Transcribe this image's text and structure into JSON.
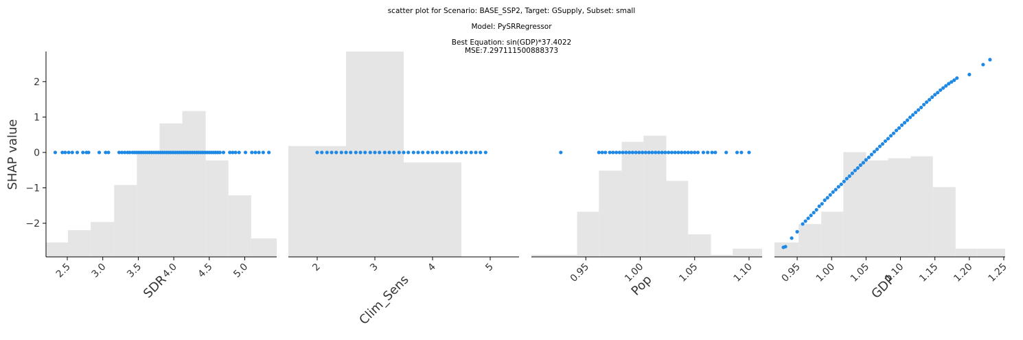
{
  "figure": {
    "title_lines": [
      "scatter plot for Scenario: BASE_SSP2, Target: GSupply, Subset: small",
      "Model: PySRRegressor",
      "Best Equation: sin(GDP)*37.4022",
      "MSE:7.297111500888373"
    ],
    "ylabel": "SHAP value"
  },
  "chart_data": [
    {
      "type": "scatter",
      "xlabel": "SDR",
      "xlim": [
        2.2,
        5.45
      ],
      "xticks": [
        2.5,
        3.0,
        3.5,
        4.0,
        4.5,
        5.0
      ],
      "xtick_labels": [
        "2.5",
        "3.0",
        "3.5",
        "4.0",
        "4.5",
        "5.0"
      ],
      "ylim": [
        -2.95,
        2.85
      ],
      "yticks": [
        -2,
        -1,
        0,
        1,
        2
      ],
      "ytick_labels": [
        "−2",
        "−1",
        "0",
        "1",
        "2"
      ],
      "point_color": "#1e88e5",
      "histogram_color": "#e5e5e5",
      "x": [
        2.33,
        2.43,
        2.47,
        2.52,
        2.57,
        2.64,
        2.72,
        2.77,
        2.8,
        2.95,
        3.04,
        3.08,
        3.23,
        3.27,
        3.31,
        3.35,
        3.38,
        3.42,
        3.45,
        3.48,
        3.51,
        3.54,
        3.57,
        3.6,
        3.63,
        3.66,
        3.69,
        3.72,
        3.75,
        3.78,
        3.81,
        3.84,
        3.87,
        3.9,
        3.93,
        3.96,
        3.99,
        4.02,
        4.05,
        4.08,
        4.11,
        4.14,
        4.17,
        4.2,
        4.23,
        4.26,
        4.29,
        4.32,
        4.35,
        4.38,
        4.41,
        4.44,
        4.47,
        4.5,
        4.53,
        4.56,
        4.59,
        4.62,
        4.65,
        4.7,
        4.79,
        4.83,
        4.87,
        4.92,
        5.01,
        5.1,
        5.15,
        5.2,
        5.26,
        5.34
      ],
      "y": [
        0,
        0,
        0,
        0,
        0,
        0,
        0,
        0,
        0,
        0,
        0,
        0,
        0,
        0,
        0,
        0,
        0,
        0,
        0,
        0,
        0,
        0,
        0,
        0,
        0,
        0,
        0,
        0,
        0,
        0,
        0,
        0,
        0,
        0,
        0,
        0,
        0,
        0,
        0,
        0,
        0,
        0,
        0,
        0,
        0,
        0,
        0,
        0,
        0,
        0,
        0,
        0,
        0,
        0,
        0,
        0,
        0,
        0,
        0,
        0,
        0,
        0,
        0,
        0,
        0,
        0,
        0,
        0,
        0,
        0
      ],
      "histogram": {
        "edges": [
          2.2,
          2.51,
          2.83,
          3.16,
          3.48,
          3.8,
          4.12,
          4.45,
          4.77,
          5.09,
          5.45
        ],
        "relative_heights": [
          0.07,
          0.13,
          0.17,
          0.35,
          0.5,
          0.65,
          0.71,
          0.47,
          0.3,
          0.09
        ]
      }
    },
    {
      "type": "scatter",
      "xlabel": "Clim_Sens",
      "xlim": [
        1.5,
        5.5
      ],
      "xticks": [
        2,
        3,
        4,
        5
      ],
      "xtick_labels": [
        "2",
        "3",
        "4",
        "5"
      ],
      "ylim": [
        -2.95,
        2.85
      ],
      "yticks": [
        -2,
        -1,
        0,
        1,
        2
      ],
      "ytick_labels": [
        "−2",
        "−1",
        "0",
        "1",
        "2"
      ],
      "point_color": "#1e88e5",
      "histogram_color": "#e5e5e5",
      "x": [
        2.0,
        2.08,
        2.17,
        2.25,
        2.33,
        2.42,
        2.5,
        2.58,
        2.67,
        2.75,
        2.83,
        2.92,
        3.0,
        3.08,
        3.17,
        3.25,
        3.33,
        3.42,
        3.5,
        3.58,
        3.67,
        3.75,
        3.83,
        3.92,
        4.0,
        4.08,
        4.17,
        4.25,
        4.33,
        4.42,
        4.5,
        4.58,
        4.67,
        4.75,
        4.83,
        4.92
      ],
      "y": [
        0,
        0,
        0,
        0,
        0,
        0,
        0,
        0,
        0,
        0,
        0,
        0,
        0,
        0,
        0,
        0,
        0,
        0,
        0,
        0,
        0,
        0,
        0,
        0,
        0,
        0,
        0,
        0,
        0,
        0,
        0,
        0,
        0,
        0,
        0,
        0
      ],
      "histogram": {
        "edges": [
          1.5,
          2.5,
          3.5,
          4.5,
          5.5
        ],
        "relative_heights": [
          0.54,
          1.0,
          0.46,
          0.0
        ]
      }
    },
    {
      "type": "scatter",
      "xlabel": "Pop",
      "xlim": [
        0.9,
        1.112
      ],
      "xticks": [
        0.95,
        1.0,
        1.05,
        1.1
      ],
      "xtick_labels": [
        "0.95",
        "1.00",
        "1.05",
        "1.10"
      ],
      "ylim": [
        -2.95,
        2.85
      ],
      "yticks": [
        -2,
        -1,
        0,
        1,
        2
      ],
      "ytick_labels": [
        "−2",
        "−1",
        "0",
        "1",
        "2"
      ],
      "point_color": "#1e88e5",
      "histogram_color": "#e5e5e5",
      "x": [
        0.927,
        0.962,
        0.965,
        0.968,
        0.972,
        0.975,
        0.978,
        0.981,
        0.984,
        0.987,
        0.99,
        0.993,
        0.996,
        0.999,
        1.002,
        1.005,
        1.008,
        1.011,
        1.014,
        1.017,
        1.02,
        1.023,
        1.026,
        1.029,
        1.032,
        1.035,
        1.038,
        1.041,
        1.044,
        1.047,
        1.05,
        1.053,
        1.058,
        1.062,
        1.066,
        1.069,
        1.079,
        1.089,
        1.093,
        1.1
      ],
      "y": [
        0,
        0,
        0,
        0,
        0,
        0,
        0,
        0,
        0,
        0,
        0,
        0,
        0,
        0,
        0,
        0,
        0,
        0,
        0,
        0,
        0,
        0,
        0,
        0,
        0,
        0,
        0,
        0,
        0,
        0,
        0,
        0,
        0,
        0,
        0,
        0,
        0,
        0,
        0,
        0
      ],
      "histogram": {
        "edges": [
          0.9,
          0.942,
          0.962,
          0.983,
          1.003,
          1.024,
          1.044,
          1.065,
          1.085,
          1.112
        ],
        "relative_heights": [
          0.01,
          0.22,
          0.42,
          0.56,
          0.59,
          0.37,
          0.11,
          0.01,
          0.04
        ]
      }
    },
    {
      "type": "scatter",
      "xlabel": "GDP",
      "xlim": [
        0.917,
        1.252
      ],
      "xticks": [
        0.95,
        1.0,
        1.05,
        1.1,
        1.15,
        1.2,
        1.25
      ],
      "xtick_labels": [
        "0.95",
        "1.00",
        "1.05",
        "1.10",
        "1.15",
        "1.20",
        "1.25"
      ],
      "ylim": [
        -2.95,
        2.85
      ],
      "yticks": [
        -2,
        -1,
        0,
        1,
        2
      ],
      "ytick_labels": [
        "−2",
        "−1",
        "0",
        "1",
        "2"
      ],
      "point_color": "#1e88e5",
      "histogram_color": "#e5e5e5",
      "x": [
        0.93,
        0.933,
        0.942,
        0.95,
        0.958,
        0.962,
        0.966,
        0.97,
        0.974,
        0.978,
        0.982,
        0.986,
        0.99,
        0.994,
        0.998,
        1.002,
        1.006,
        1.01,
        1.014,
        1.018,
        1.022,
        1.026,
        1.03,
        1.034,
        1.038,
        1.042,
        1.046,
        1.05,
        1.054,
        1.058,
        1.062,
        1.066,
        1.07,
        1.074,
        1.078,
        1.082,
        1.086,
        1.09,
        1.094,
        1.098,
        1.102,
        1.106,
        1.11,
        1.114,
        1.118,
        1.122,
        1.126,
        1.13,
        1.134,
        1.138,
        1.142,
        1.146,
        1.15,
        1.154,
        1.158,
        1.162,
        1.166,
        1.17,
        1.174,
        1.178,
        1.182,
        1.2,
        1.22,
        1.23
      ],
      "y": [
        -2.68,
        -2.66,
        -2.42,
        -2.24,
        -2.02,
        -1.94,
        -1.86,
        -1.78,
        -1.7,
        -1.62,
        -1.52,
        -1.45,
        -1.35,
        -1.28,
        -1.2,
        -1.12,
        -1.05,
        -0.97,
        -0.9,
        -0.82,
        -0.74,
        -0.67,
        -0.59,
        -0.51,
        -0.44,
        -0.36,
        -0.29,
        -0.21,
        -0.14,
        -0.06,
        0.02,
        0.09,
        0.17,
        0.24,
        0.32,
        0.39,
        0.47,
        0.54,
        0.62,
        0.69,
        0.77,
        0.84,
        0.91,
        0.99,
        1.06,
        1.13,
        1.2,
        1.27,
        1.35,
        1.42,
        1.49,
        1.56,
        1.63,
        1.69,
        1.76,
        1.82,
        1.88,
        1.94,
        1.99,
        2.04,
        2.1,
        2.2,
        2.48,
        2.62
      ],
      "histogram": {
        "edges": [
          0.917,
          0.952,
          0.985,
          1.017,
          1.05,
          1.082,
          1.115,
          1.147,
          1.18,
          1.212,
          1.252
        ],
        "relative_heights": [
          0.07,
          0.16,
          0.22,
          0.51,
          0.47,
          0.48,
          0.49,
          0.34,
          0.04,
          0.04
        ]
      }
    }
  ]
}
